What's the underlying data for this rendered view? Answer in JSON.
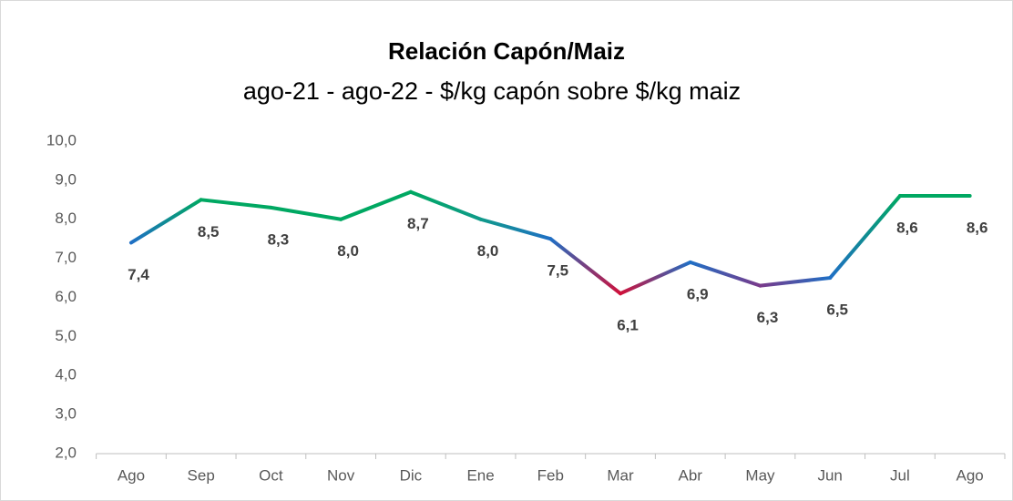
{
  "chart_data": {
    "type": "line",
    "title": "Relación Capón/Maiz",
    "subtitle": "ago-21 - ago-22 - $/kg capón sobre $/kg maiz",
    "categories": [
      "Ago",
      "Sep",
      "Oct",
      "Nov",
      "Dic",
      "Ene",
      "Feb",
      "Mar",
      "Abr",
      "May",
      "Jun",
      "Jul",
      "Ago"
    ],
    "values": [
      7.4,
      8.5,
      8.3,
      8.0,
      8.7,
      8.0,
      7.5,
      6.1,
      6.9,
      6.3,
      6.5,
      8.6,
      8.6
    ],
    "value_labels": [
      "7,4",
      "8,5",
      "8,3",
      "8,0",
      "8,7",
      "8,0",
      "7,5",
      "6,1",
      "6,9",
      "6,3",
      "6,5",
      "8,6",
      "8,6"
    ],
    "colors": [
      "#1f6fc5",
      "#00a862",
      "#00a862",
      "#00a862",
      "#00a862",
      "#109a8a",
      "#1f6fc5",
      "#d0103a",
      "#1f6fc5",
      "#7a3a8a",
      "#1f6fc5",
      "#00a862",
      "#00a862"
    ],
    "ylim": [
      2,
      10
    ],
    "yticks": [
      {
        "value": 2,
        "label": "2,0"
      },
      {
        "value": 3,
        "label": "3,0"
      },
      {
        "value": 4,
        "label": "4,0"
      },
      {
        "value": 5,
        "label": "5,0"
      },
      {
        "value": 6,
        "label": "6,0"
      },
      {
        "value": 7,
        "label": "7,0"
      },
      {
        "value": 8,
        "label": "8,0"
      },
      {
        "value": 9,
        "label": "9,0"
      },
      {
        "value": 10,
        "label": "10,0"
      }
    ]
  }
}
